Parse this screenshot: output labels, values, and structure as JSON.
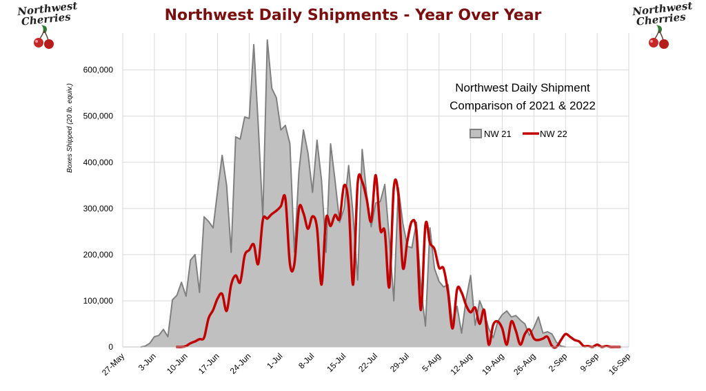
{
  "page": {
    "title": "Northwest Daily Shipments - Year Over Year",
    "title_color": "#7a0f0f",
    "logo": {
      "line1": "Northwest",
      "line2": "Cherries",
      "icon": "cherries-logo-icon"
    }
  },
  "chart_data": {
    "type": "area",
    "title": "Northwest Daily Shipment\nComparison of 2021 & 2022",
    "ylabel": "Boxes Shipped (20 lb. equiv.)",
    "xlabel": "",
    "x_tick_labels": [
      "27-May",
      "3-Jun",
      "10-Jun",
      "17-Jun",
      "24-Jun",
      "1-Jul",
      "8-Jul",
      "15-Jul",
      "22-Jul",
      "29-Jul",
      "5-Aug",
      "12-Aug",
      "19-Aug",
      "26-Aug",
      "2-Sep",
      "9-Sep",
      "16-Sep"
    ],
    "y_tick_labels": [
      "0",
      "100,000",
      "200,000",
      "300,000",
      "400,000",
      "500,000",
      "600,000"
    ],
    "ylim": [
      0,
      680000
    ],
    "x_day_range": [
      0,
      112
    ],
    "x_day_origin": "27-May",
    "grid": true,
    "legend_position": "top-right",
    "series": [
      {
        "name": "NW 21",
        "style": "area",
        "fill": "#c0c0c0",
        "color": "#7f7f7f",
        "points": [
          [
            4,
            0
          ],
          [
            5,
            2000
          ],
          [
            6,
            8000
          ],
          [
            7,
            22000
          ],
          [
            8,
            25000
          ],
          [
            9,
            38000
          ],
          [
            10,
            22000
          ],
          [
            11,
            102000
          ],
          [
            12,
            112000
          ],
          [
            13,
            140000
          ],
          [
            14,
            110000
          ],
          [
            15,
            188000
          ],
          [
            16,
            200000
          ],
          [
            17,
            118000
          ],
          [
            18,
            282000
          ],
          [
            19,
            272000
          ],
          [
            20,
            258000
          ],
          [
            21,
            338000
          ],
          [
            22,
            415000
          ],
          [
            23,
            350000
          ],
          [
            24,
            205000
          ],
          [
            25,
            455000
          ],
          [
            26,
            450000
          ],
          [
            27,
            498000
          ],
          [
            28,
            495000
          ],
          [
            29,
            655000
          ],
          [
            30,
            480000
          ],
          [
            31,
            280000
          ],
          [
            32,
            665000
          ],
          [
            33,
            560000
          ],
          [
            34,
            540000
          ],
          [
            35,
            470000
          ],
          [
            36,
            480000
          ],
          [
            37,
            440000
          ],
          [
            38,
            205000
          ],
          [
            39,
            380000
          ],
          [
            40,
            470000
          ],
          [
            41,
            420000
          ],
          [
            42,
            335000
          ],
          [
            43,
            448000
          ],
          [
            44,
            360000
          ],
          [
            45,
            205000
          ],
          [
            46,
            440000
          ],
          [
            47,
            360000
          ],
          [
            48,
            270000
          ],
          [
            49,
            300000
          ],
          [
            50,
            393000
          ],
          [
            51,
            285000
          ],
          [
            52,
            145000
          ],
          [
            53,
            428000
          ],
          [
            54,
            330000
          ],
          [
            55,
            260000
          ],
          [
            56,
            312000
          ],
          [
            57,
            315000
          ],
          [
            58,
            352000
          ],
          [
            59,
            235000
          ],
          [
            60,
            100000
          ],
          [
            61,
            345000
          ],
          [
            62,
            268000
          ],
          [
            63,
            218000
          ],
          [
            64,
            215000
          ],
          [
            65,
            270000
          ],
          [
            66,
            130000
          ],
          [
            67,
            45000
          ],
          [
            68,
            258000
          ],
          [
            69,
            170000
          ],
          [
            70,
            142000
          ],
          [
            71,
            130000
          ],
          [
            72,
            135000
          ],
          [
            73,
            50000
          ],
          [
            74,
            88000
          ],
          [
            75,
            30000
          ],
          [
            76,
            104000
          ],
          [
            77,
            155000
          ],
          [
            78,
            47000
          ],
          [
            79,
            100000
          ],
          [
            80,
            75000
          ],
          [
            81,
            40000
          ],
          [
            82,
            20000
          ],
          [
            83,
            55000
          ],
          [
            84,
            70000
          ],
          [
            85,
            78000
          ],
          [
            86,
            65000
          ],
          [
            87,
            68000
          ],
          [
            88,
            58000
          ],
          [
            89,
            50000
          ],
          [
            90,
            25000
          ],
          [
            91,
            42000
          ],
          [
            92,
            65000
          ],
          [
            93,
            30000
          ],
          [
            94,
            33000
          ],
          [
            95,
            28000
          ],
          [
            96,
            10000
          ],
          [
            97,
            2000
          ],
          [
            98,
            0
          ]
        ]
      },
      {
        "name": "NW 22",
        "style": "line",
        "color": "#c00000",
        "points": [
          [
            12,
            0
          ],
          [
            13,
            0
          ],
          [
            14,
            2000
          ],
          [
            15,
            8000
          ],
          [
            16,
            12000
          ],
          [
            17,
            17000
          ],
          [
            18,
            20000
          ],
          [
            19,
            62000
          ],
          [
            20,
            80000
          ],
          [
            21,
            105000
          ],
          [
            22,
            115000
          ],
          [
            23,
            78000
          ],
          [
            24,
            135000
          ],
          [
            25,
            155000
          ],
          [
            26,
            140000
          ],
          [
            27,
            198000
          ],
          [
            28,
            210000
          ],
          [
            29,
            222000
          ],
          [
            30,
            180000
          ],
          [
            31,
            275000
          ],
          [
            32,
            278000
          ],
          [
            33,
            288000
          ],
          [
            34,
            295000
          ],
          [
            35,
            305000
          ],
          [
            36,
            322000
          ],
          [
            37,
            180000
          ],
          [
            38,
            180000
          ],
          [
            39,
            300000
          ],
          [
            40,
            290000
          ],
          [
            41,
            256000
          ],
          [
            42,
            283000
          ],
          [
            43,
            258000
          ],
          [
            44,
            135000
          ],
          [
            45,
            278000
          ],
          [
            46,
            262000
          ],
          [
            47,
            286000
          ],
          [
            48,
            278000
          ],
          [
            49,
            350000
          ],
          [
            50,
            308000
          ],
          [
            51,
            135000
          ],
          [
            52,
            355000
          ],
          [
            53,
            358000
          ],
          [
            54,
            320000
          ],
          [
            55,
            272000
          ],
          [
            56,
            372000
          ],
          [
            57,
            255000
          ],
          [
            58,
            250000
          ],
          [
            59,
            130000
          ],
          [
            60,
            345000
          ],
          [
            61,
            330000
          ],
          [
            62,
            172000
          ],
          [
            63,
            230000
          ],
          [
            64,
            272000
          ],
          [
            65,
            250000
          ],
          [
            66,
            80000
          ],
          [
            67,
            265000
          ],
          [
            68,
            225000
          ],
          [
            69,
            212000
          ],
          [
            70,
            172000
          ],
          [
            71,
            170000
          ],
          [
            72,
            118000
          ],
          [
            73,
            40000
          ],
          [
            74,
            125000
          ],
          [
            75,
            118000
          ],
          [
            76,
            90000
          ],
          [
            77,
            75000
          ],
          [
            78,
            85000
          ],
          [
            79,
            50000
          ],
          [
            80,
            80000
          ],
          [
            81,
            5000
          ],
          [
            82,
            48000
          ],
          [
            83,
            55000
          ],
          [
            84,
            40000
          ],
          [
            85,
            5000
          ],
          [
            86,
            55000
          ],
          [
            87,
            35000
          ],
          [
            88,
            5000
          ],
          [
            89,
            28000
          ],
          [
            90,
            38000
          ],
          [
            91,
            18000
          ],
          [
            92,
            15000
          ],
          [
            93,
            18000
          ],
          [
            94,
            22000
          ],
          [
            95,
            2000
          ],
          [
            96,
            0
          ],
          [
            97,
            15000
          ],
          [
            98,
            28000
          ],
          [
            99,
            22000
          ],
          [
            100,
            15000
          ],
          [
            101,
            12000
          ],
          [
            102,
            2000
          ],
          [
            103,
            2000
          ],
          [
            104,
            0
          ],
          [
            105,
            5000
          ],
          [
            106,
            0
          ],
          [
            107,
            2000
          ],
          [
            108,
            0
          ],
          [
            109,
            0
          ],
          [
            110,
            0
          ]
        ]
      }
    ]
  }
}
